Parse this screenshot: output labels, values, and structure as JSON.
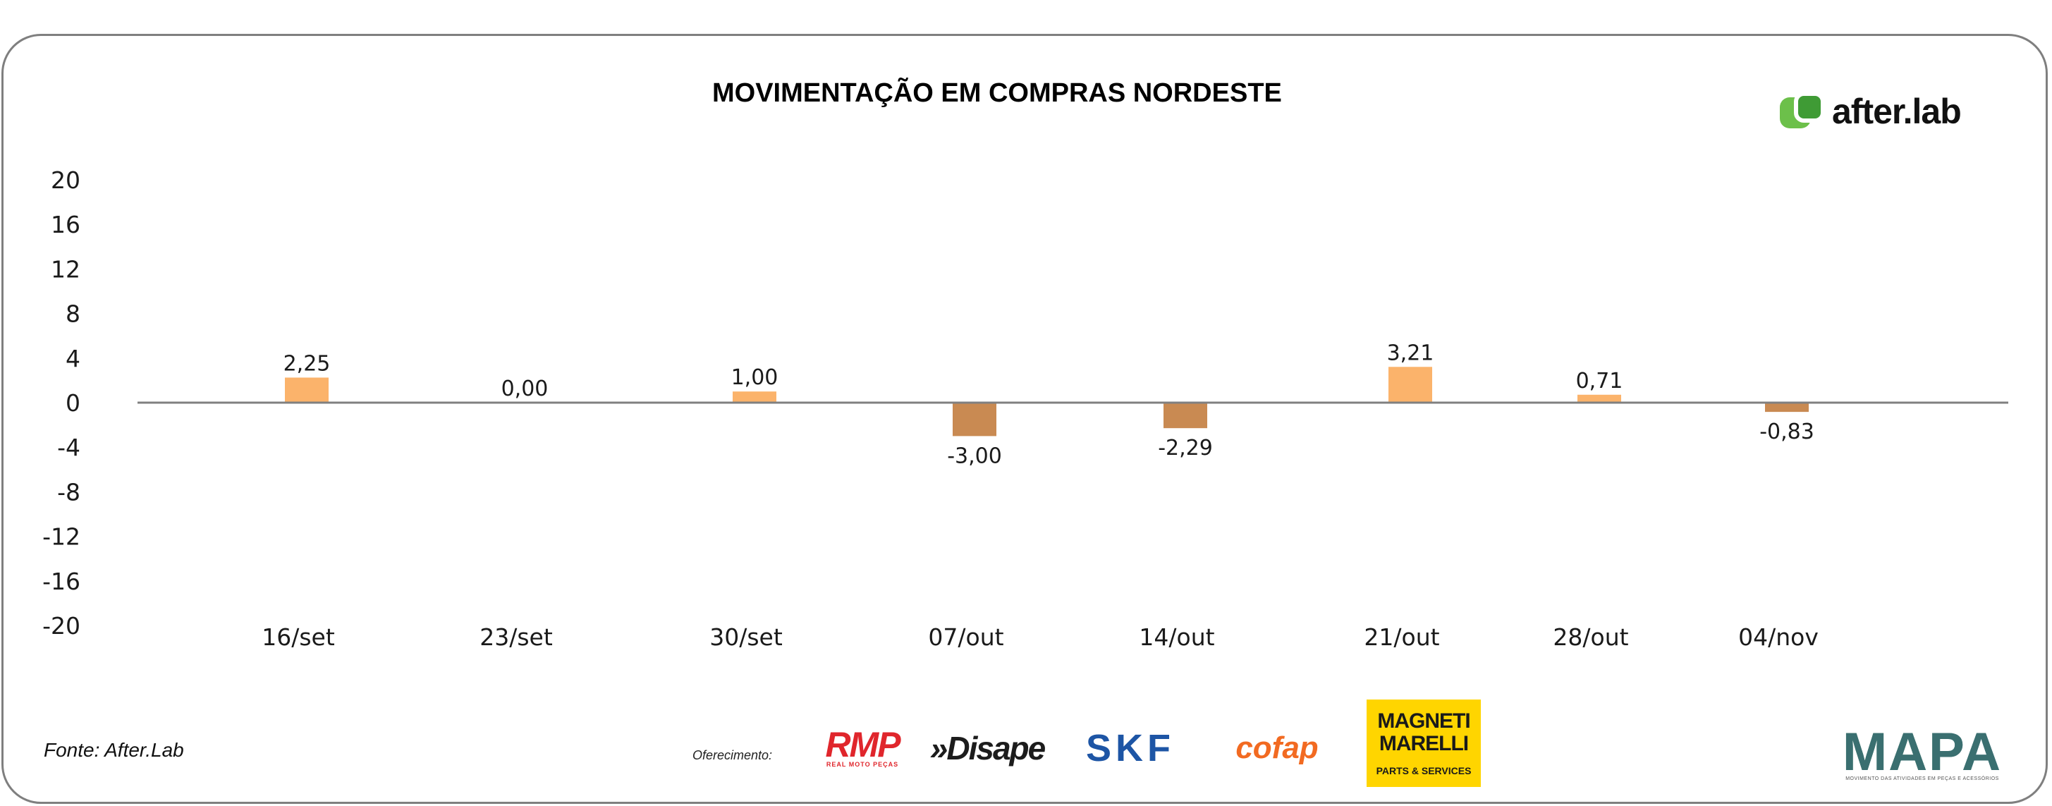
{
  "chart_data": {
    "type": "bar",
    "title": "MOVIMENTAÇÃO EM COMPRAS NORDESTE",
    "xlabel": "",
    "ylabel": "",
    "categories": [
      "16/set",
      "23/set",
      "30/set",
      "07/out",
      "14/out",
      "21/out",
      "28/out",
      "04/nov"
    ],
    "values": [
      2.25,
      0.0,
      1.0,
      -3.0,
      -2.29,
      3.21,
      0.71,
      -0.83
    ],
    "data_labels": [
      "2,25",
      "0,00",
      "1,00",
      "-3,00",
      "-2,29",
      "3,21",
      "0,71",
      "-0,83"
    ],
    "y_ticks": [
      20,
      16,
      12,
      8,
      4,
      0,
      -4,
      -8,
      -12,
      -16,
      -20
    ],
    "ylim": [
      -20,
      20
    ],
    "grid": false,
    "legend": "none",
    "colors": {
      "positive": "#fbb36b",
      "negative": "#c98a52",
      "axis": "#808080"
    }
  },
  "source": "Fonte: After.Lab",
  "offer_label": "Oferecimento:",
  "brand_logo": {
    "text": "after.lab",
    "icon": "afterlab-logo-icon",
    "color": "#5ab947"
  },
  "sponsors": {
    "rmp": {
      "main": "RMP",
      "sub": "REAL MOTO PEÇAS"
    },
    "disape": {
      "main": "»Disape"
    },
    "skf": {
      "main": "SKF"
    },
    "cofap": {
      "main": "cofap"
    },
    "magneti": {
      "main": "MAGNETI MARELLI",
      "sub": "PARTS & SERVICES"
    },
    "mapa": {
      "main": "MAPA",
      "sub": "MOVIMENTO DAS ATIVIDADES EM PEÇAS E ACESSÓRIOS"
    }
  }
}
